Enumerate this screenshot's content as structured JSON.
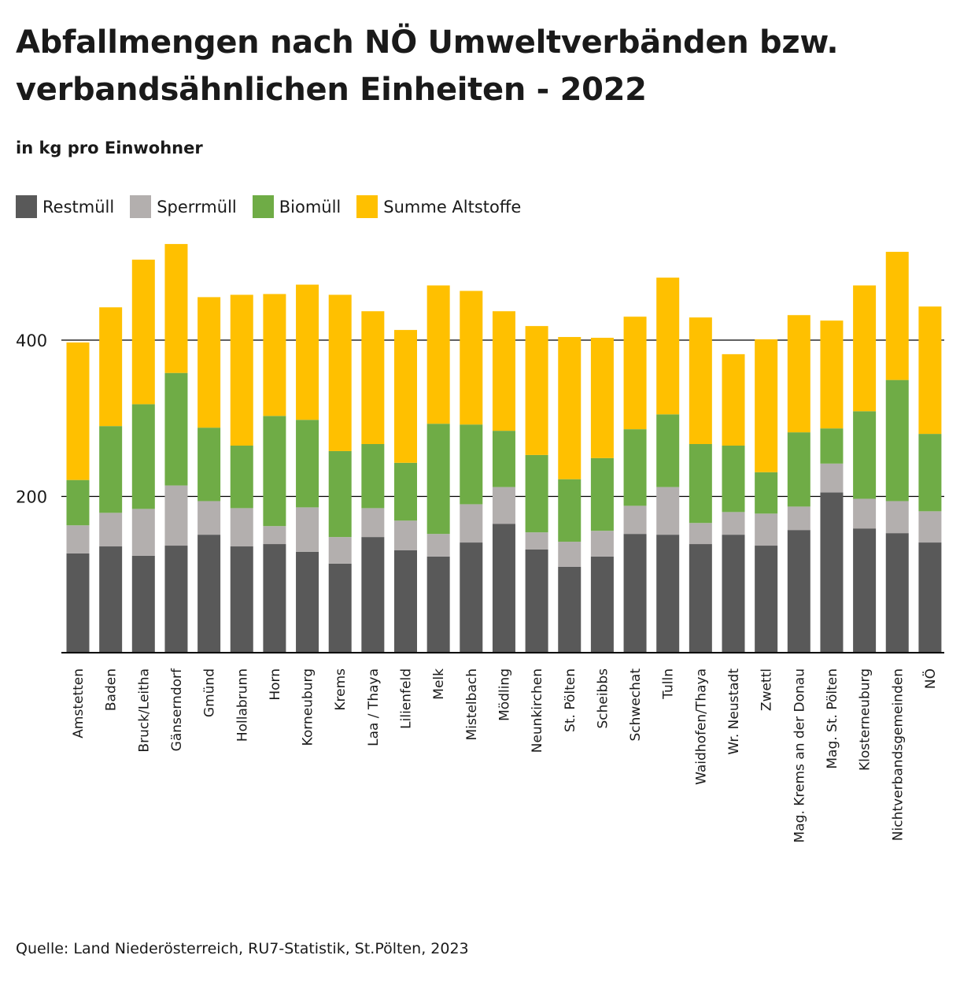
{
  "title": "Abfallmengen nach NÖ Umweltverbänden bzw. verbandsähnlichen Einheiten - 2022",
  "subtitle": "in kg pro Einwohner",
  "source": "Quelle: Land Niederösterreich, RU7-Statistik, St.Pölten, 2023",
  "colors": {
    "restmuell": "#595959",
    "sperrmuell": "#b3afae",
    "biomuell": "#6fac46",
    "altstoffe": "#ffc000",
    "grid": "#000000"
  },
  "chart_data": {
    "type": "bar",
    "stacked": true,
    "title": "Abfallmengen nach NÖ Umweltverbänden bzw. verbandsähnlichen Einheiten - 2022",
    "ylabel": "in kg pro Einwohner",
    "xlabel": "",
    "ylim": [
      0,
      520
    ],
    "yticks": [
      200,
      400
    ],
    "grid": true,
    "legend": "top-left",
    "categories": [
      "Amstetten",
      "Baden",
      "Bruck/Leitha",
      "Gänserndorf",
      "Gmünd",
      "Hollabrunn",
      "Horn",
      "Korneuburg",
      "Krems",
      "Laa / Thaya",
      "Lilienfeld",
      "Melk",
      "Mistelbach",
      "Mödling",
      "Neunkirchen",
      "St. Pölten",
      "Scheibbs",
      "Schwechat",
      "Tulln",
      "Waidhofen/Thaya",
      "Wr. Neustadt",
      "Zwettl",
      "Mag. Krems an der Donau",
      "Mag. St. Pölten",
      "Klosterneuburg",
      "Nichtverbandsgemeinden",
      "NÖ"
    ],
    "series": [
      {
        "name": "Restmüll",
        "color": "#595959",
        "values": [
          127,
          136,
          124,
          137,
          151,
          136,
          139,
          129,
          114,
          148,
          131,
          123,
          141,
          165,
          132,
          110,
          123,
          152,
          151,
          139,
          151,
          137,
          157,
          205,
          159,
          153,
          141
        ]
      },
      {
        "name": "Sperrmüll",
        "color": "#b3afae",
        "values": [
          36,
          43,
          60,
          77,
          43,
          49,
          23,
          57,
          34,
          37,
          38,
          29,
          49,
          47,
          22,
          32,
          33,
          36,
          61,
          27,
          29,
          41,
          30,
          37,
          38,
          41,
          40
        ]
      },
      {
        "name": "Biomüll",
        "color": "#6fac46",
        "values": [
          58,
          111,
          134,
          144,
          94,
          80,
          141,
          112,
          110,
          82,
          74,
          141,
          102,
          72,
          99,
          80,
          93,
          98,
          93,
          101,
          85,
          53,
          95,
          45,
          112,
          155,
          99
        ]
      },
      {
        "name": "Summe Altstoffe",
        "color": "#ffc000",
        "values": [
          176,
          152,
          185,
          165,
          167,
          193,
          156,
          173,
          200,
          170,
          170,
          177,
          171,
          153,
          165,
          182,
          154,
          144,
          175,
          162,
          117,
          170,
          150,
          138,
          161,
          164,
          163
        ]
      }
    ]
  }
}
